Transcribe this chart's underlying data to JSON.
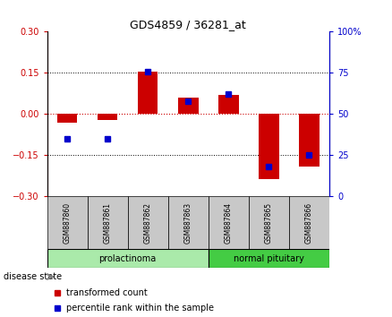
{
  "title": "GDS4859 / 36281_at",
  "samples": [
    "GSM887860",
    "GSM887861",
    "GSM887862",
    "GSM887863",
    "GSM887864",
    "GSM887865",
    "GSM887866"
  ],
  "red_values": [
    -0.03,
    -0.02,
    0.155,
    0.06,
    0.07,
    -0.235,
    -0.19
  ],
  "blue_values": [
    35,
    35,
    76,
    58,
    62,
    18,
    25
  ],
  "ylim_left": [
    -0.3,
    0.3
  ],
  "ylim_right": [
    0,
    100
  ],
  "yticks_left": [
    -0.3,
    -0.15,
    0,
    0.15,
    0.3
  ],
  "yticks_right": [
    0,
    25,
    50,
    75,
    100
  ],
  "left_color": "#cc0000",
  "right_color": "#0000cc",
  "bar_color": "#cc0000",
  "dot_color": "#0000cc",
  "bg_color": "#ffffff",
  "zero_line_color": "#cc0000",
  "sample_bg": "#c8c8c8",
  "group_bg_light_green": "#aaeaaa",
  "group_bg_dark_green": "#44cc44",
  "bar_width": 0.5,
  "legend_red_label": "transformed count",
  "legend_blue_label": "percentile rank within the sample",
  "prolactinoma_label": "prolactinoma",
  "normal_label": "normal pituitary",
  "disease_state_label": "disease state"
}
